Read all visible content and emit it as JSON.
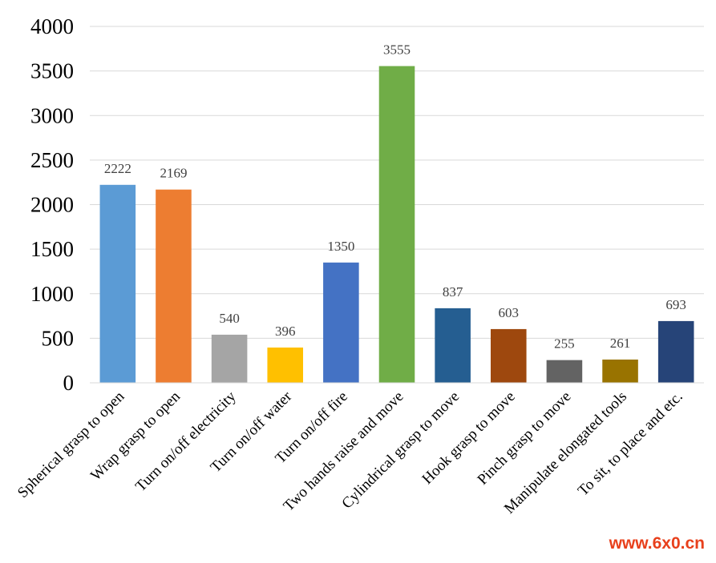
{
  "chart_data": {
    "type": "bar",
    "title": "",
    "xlabel": "",
    "ylabel": "",
    "ylim": [
      0,
      4000
    ],
    "yticks": [
      0,
      500,
      1000,
      1500,
      2000,
      2500,
      3000,
      3500,
      4000
    ],
    "grid": "horizontal",
    "legend": "none",
    "categories": [
      "Spherical grasp to open",
      "Wrap grasp to open",
      "Turn on/off electricity",
      "Turn on/off water",
      "Turn on/off fire",
      "Two hands raise and move",
      "Cylindrical grasp to move",
      "Hook grasp to move",
      "Pinch grasp to move",
      "Manipulate elongated tools",
      "To sit, to place and etc."
    ],
    "values": [
      2222,
      2169,
      540,
      396,
      1350,
      3555,
      837,
      603,
      255,
      261,
      693
    ],
    "colors": [
      "#5b9bd5",
      "#ed7d31",
      "#a5a5a5",
      "#ffc000",
      "#4472c4",
      "#70ad47",
      "#255e91",
      "#9e480e",
      "#636363",
      "#997300",
      "#264478"
    ]
  },
  "watermark": "www.6x0.cn"
}
